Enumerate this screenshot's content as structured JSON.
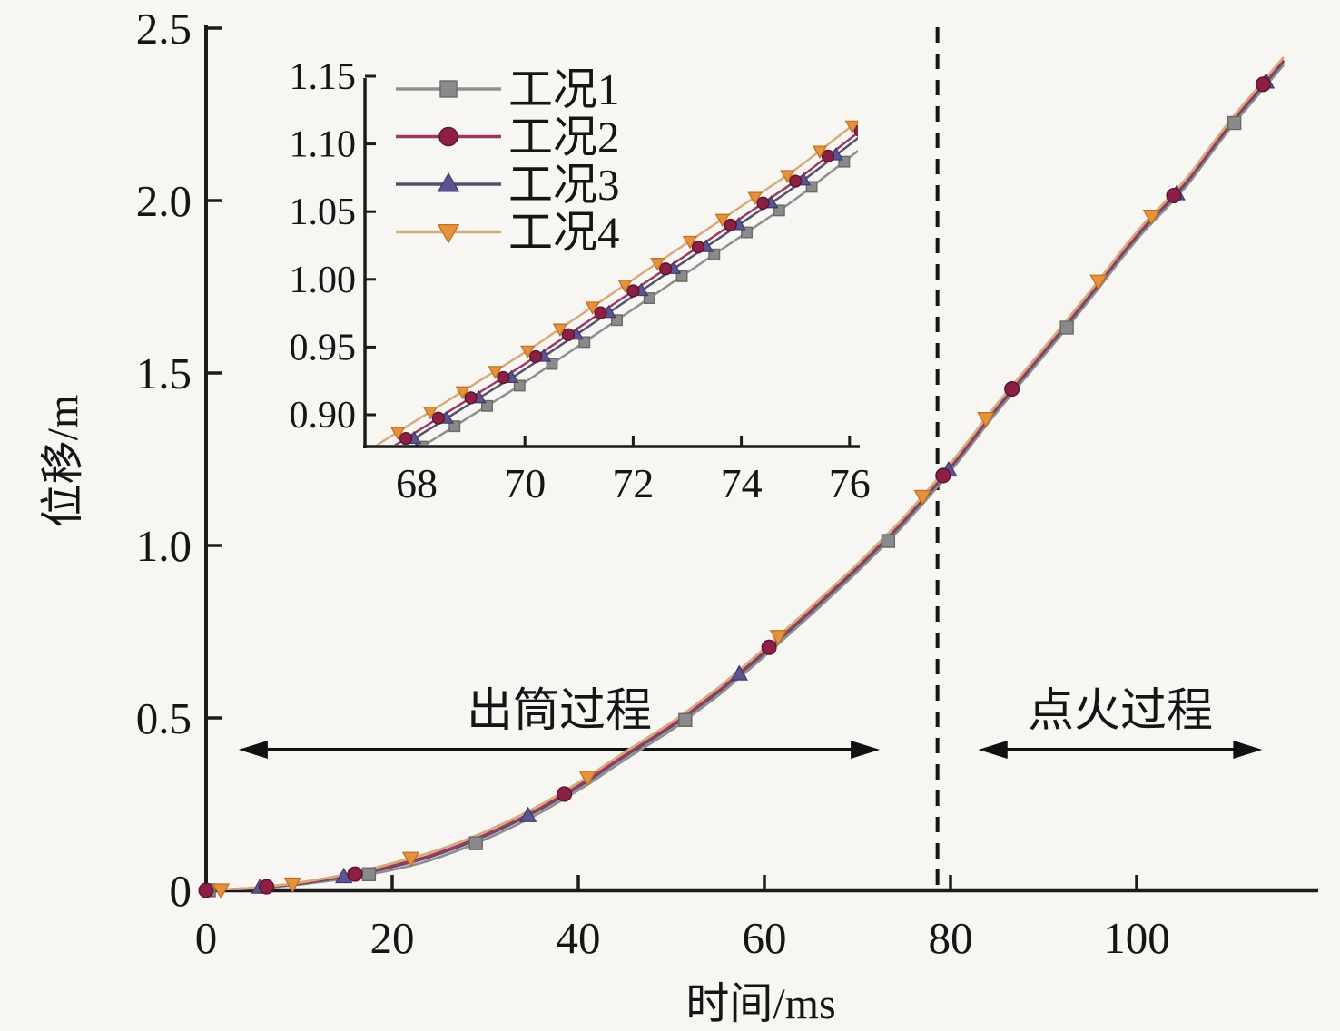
{
  "figure": {
    "background": "#f7f6f3",
    "axis_color": "#1b1b1b"
  },
  "chart_data": {
    "type": "line",
    "title": "",
    "xlabel": "时间/ms",
    "ylabel": "位移/m",
    "xlim": [
      0,
      118
    ],
    "ylim": [
      0,
      2.5
    ],
    "grid": false,
    "legend_position": "inset-top-left",
    "xticks": [
      {
        "v": 0,
        "label": "0"
      },
      {
        "v": 20,
        "label": "20"
      },
      {
        "v": 40,
        "label": "40"
      },
      {
        "v": 60,
        "label": "60"
      },
      {
        "v": 80,
        "label": "80"
      },
      {
        "v": 100,
        "label": "100"
      }
    ],
    "yticks": [
      {
        "v": 0,
        "label": "0"
      },
      {
        "v": 0.5,
        "label": "0.5"
      },
      {
        "v": 1.0,
        "label": "1.0"
      },
      {
        "v": 1.5,
        "label": "1.5"
      },
      {
        "v": 2.0,
        "label": "2.0"
      },
      {
        "v": 2.5,
        "label": "2.5"
      }
    ],
    "base_curve": {
      "t_ms": [
        0,
        5,
        10,
        15,
        20,
        25,
        30,
        35,
        40,
        45,
        50,
        55,
        60,
        65,
        70,
        75,
        80,
        85,
        90,
        95,
        100,
        105,
        110,
        115.8
      ],
      "y_m": [
        0,
        0.006,
        0.019,
        0.04,
        0.068,
        0.105,
        0.158,
        0.222,
        0.3,
        0.39,
        0.475,
        0.575,
        0.69,
        0.81,
        0.935,
        1.07,
        1.225,
        1.4,
        1.56,
        1.725,
        1.9,
        2.04,
        2.22,
        2.405
      ]
    },
    "series": [
      {
        "name": "工况1",
        "marker": "square",
        "marker_color": "#8a8a8a",
        "marker_edge": "#696969",
        "line_color": "#8e8e8e",
        "offset_m": -0.011,
        "marker_t_main": [
          0.3,
          17.5,
          29,
          51.5,
          73.3,
          92.5,
          110.5
        ],
        "inset_marker_phase": 0.5
      },
      {
        "name": "工况3",
        "marker": "triangle-up",
        "marker_color": "#5b5490",
        "marker_edge": "#3e3a68",
        "line_color": "#565070",
        "offset_m": -0.0015,
        "marker_t_main": [
          5.8,
          14.8,
          34.6,
          57.3,
          79.8,
          104.3,
          113.9
        ],
        "inset_marker_phase": 0.35
      },
      {
        "name": "工况2",
        "marker": "circle",
        "marker_color": "#8c2044",
        "marker_edge": "#5c1230",
        "line_color": "#9a3a5e",
        "offset_m": 0.0025,
        "marker_t_main": [
          0,
          6.5,
          16,
          38.5,
          60.5,
          79.2,
          86.6,
          104,
          113.6
        ],
        "inset_marker_phase": 0.2
      },
      {
        "name": "工况4",
        "marker": "triangle-down",
        "marker_color": "#e6913c",
        "marker_edge": "#bf6f1e",
        "line_color": "#d5ab7d",
        "offset_m": 0.011,
        "marker_t_main": [
          1.6,
          9.3,
          22,
          41,
          61.5,
          77,
          83.8,
          95.9,
          101.6
        ],
        "inset_marker_phase": 0.05
      }
    ],
    "legend": {
      "items": [
        "工况1",
        "工况2",
        "工况3",
        "工况4"
      ]
    },
    "dashed_line_ms": 78.6,
    "annotations": [
      {
        "text": "出筒过程",
        "from_ms": 3.5,
        "to_ms": 72.4,
        "y_m": 0.408,
        "arrow": "double"
      },
      {
        "text": "点火过程",
        "from_ms": 83.0,
        "to_ms": 113.5,
        "y_m": 0.408,
        "arrow": "double"
      }
    ],
    "inset": {
      "xlim": [
        67.0,
        76.15
      ],
      "ylim": [
        0.8765,
        1.1473
      ],
      "xticks": [
        {
          "v": 68,
          "label": "68"
        },
        {
          "v": 70,
          "label": "70"
        },
        {
          "v": 72,
          "label": "72"
        },
        {
          "v": 74,
          "label": "74"
        },
        {
          "v": 76,
          "label": "76"
        }
      ],
      "yticks": [
        {
          "v": 0.9,
          "label": "0.90"
        },
        {
          "v": 0.95,
          "label": "0.95"
        },
        {
          "v": 1.0,
          "label": "1.00"
        },
        {
          "v": 1.05,
          "label": "1.05"
        },
        {
          "v": 1.1,
          "label": "1.10"
        },
        {
          "v": 1.15,
          "label": "1.15"
        }
      ],
      "marker_interval_ms": 0.6
    }
  }
}
